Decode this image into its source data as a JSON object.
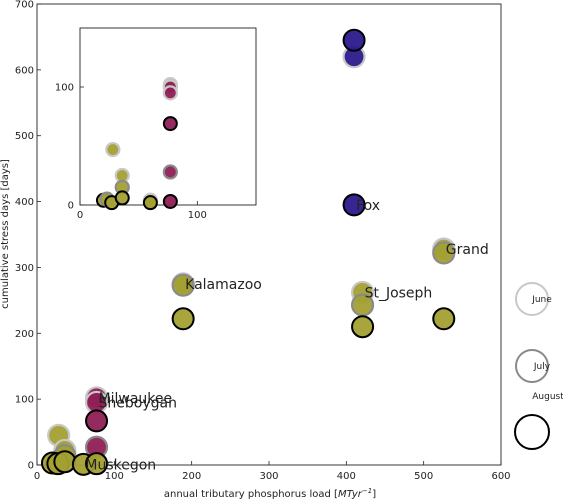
{
  "chart_data": [
    {
      "type": "scatter",
      "xlabel": "annual tributary phosphorus load [$MTyr^{-1}$]",
      "xlabel_parts": [
        "annual tributary phosphorus load [",
        "MTyr",
        "−1",
        "]"
      ],
      "ylabel": "cumulative stress days [days]",
      "xlim": [
        0,
        600
      ],
      "ylim": [
        0,
        700
      ],
      "xticks": [
        0,
        100,
        200,
        300,
        400,
        500,
        600
      ],
      "yticks": [
        0,
        100,
        200,
        300,
        400,
        500,
        600,
        700
      ],
      "grid": false,
      "series": [
        {
          "name": "June",
          "color": "#a3a033",
          "edge": "#b0b0b0",
          "points": [
            {
              "x": 28,
              "y": 45
            },
            {
              "x": 36,
              "y": 22
            },
            {
              "x": 77,
              "y": 102
            },
            {
              "x": 189,
              "y": 275
            },
            {
              "x": 410,
              "y": 620
            },
            {
              "x": 421,
              "y": 262
            },
            {
              "x": 526,
              "y": 328
            }
          ]
        },
        {
          "name": "July",
          "color": "#8e1f55",
          "edge": "#a0a0a0",
          "points": [
            {
              "x": 77,
              "y": 95
            },
            {
              "x": 77,
              "y": 27
            },
            {
              "x": 36,
              "y": 14
            },
            {
              "x": 189,
              "y": 273
            },
            {
              "x": 421,
              "y": 243
            },
            {
              "x": 526,
              "y": 322
            }
          ]
        },
        {
          "name": "August",
          "color": "#2b1a8c",
          "edge": "#000000",
          "points": [
            {
              "x": 77,
              "y": 67
            },
            {
              "x": 20,
              "y": 3
            },
            {
              "x": 27,
              "y": 2
            },
            {
              "x": 36,
              "y": 5
            },
            {
              "x": 60,
              "y": 1
            },
            {
              "x": 77,
              "y": 2
            },
            {
              "x": 189,
              "y": 222
            },
            {
              "x": 410,
              "y": 645
            },
            {
              "x": 410,
              "y": 395
            },
            {
              "x": 421,
              "y": 210
            },
            {
              "x": 526,
              "y": 222
            }
          ]
        }
      ],
      "point_colors": {
        "olive": "#a3a033",
        "magenta": "#8e1f55",
        "navy": "#2b1a8c"
      },
      "drawn_points": [
        {
          "x": 28,
          "y": 45,
          "fill": "olive",
          "edge": "light"
        },
        {
          "x": 36,
          "y": 22,
          "fill": "olive",
          "edge": "light"
        },
        {
          "x": 77,
          "y": 102,
          "fill": "magenta",
          "edge": "light"
        },
        {
          "x": 77,
          "y": 95,
          "fill": "magenta",
          "edge": "light"
        },
        {
          "x": 77,
          "y": 67,
          "fill": "magenta",
          "edge": "dark"
        },
        {
          "x": 77,
          "y": 27,
          "fill": "magenta",
          "edge": "mid"
        },
        {
          "x": 36,
          "y": 14,
          "fill": "olive",
          "edge": "mid"
        },
        {
          "x": 20,
          "y": 3,
          "fill": "olive",
          "edge": "dark"
        },
        {
          "x": 27,
          "y": 2,
          "fill": "olive",
          "edge": "dark"
        },
        {
          "x": 36,
          "y": 5,
          "fill": "olive",
          "edge": "dark"
        },
        {
          "x": 60,
          "y": 1,
          "fill": "olive",
          "edge": "dark"
        },
        {
          "x": 77,
          "y": 2,
          "fill": "olive",
          "edge": "dark"
        },
        {
          "x": 189,
          "y": 275,
          "fill": "olive",
          "edge": "light"
        },
        {
          "x": 189,
          "y": 273,
          "fill": "olive",
          "edge": "mid"
        },
        {
          "x": 189,
          "y": 222,
          "fill": "olive",
          "edge": "dark"
        },
        {
          "x": 410,
          "y": 620,
          "fill": "navy",
          "edge": "light"
        },
        {
          "x": 410,
          "y": 645,
          "fill": "navy",
          "edge": "dark"
        },
        {
          "x": 410,
          "y": 395,
          "fill": "navy",
          "edge": "dark"
        },
        {
          "x": 421,
          "y": 262,
          "fill": "olive",
          "edge": "light"
        },
        {
          "x": 421,
          "y": 243,
          "fill": "olive",
          "edge": "mid"
        },
        {
          "x": 421,
          "y": 210,
          "fill": "olive",
          "edge": "dark"
        },
        {
          "x": 526,
          "y": 328,
          "fill": "olive",
          "edge": "light"
        },
        {
          "x": 526,
          "y": 322,
          "fill": "olive",
          "edge": "mid"
        },
        {
          "x": 526,
          "y": 222,
          "fill": "olive",
          "edge": "dark"
        }
      ],
      "edge_colors": {
        "light": "#c8c8c8",
        "mid": "#8a8a8a",
        "dark": "#000000"
      },
      "annotations": [
        {
          "text": "Fox",
          "x": 410,
          "y": 395
        },
        {
          "text": "Grand",
          "x": 526,
          "y": 328
        },
        {
          "text": "Kalamazoo",
          "x": 189,
          "y": 275
        },
        {
          "text": "St_Joseph",
          "x": 421,
          "y": 262
        },
        {
          "text": "Milwaukee",
          "x": 77,
          "y": 102
        },
        {
          "text": "Sheboygan",
          "x": 77,
          "y": 95
        },
        {
          "text": "Muskegon",
          "x": 60,
          "y": 1
        }
      ],
      "legend": {
        "placement": "right, outside plot",
        "entries": [
          {
            "label": "June",
            "edge": "light"
          },
          {
            "label": "July",
            "edge": "mid"
          },
          {
            "label": "August",
            "edge": "dark"
          }
        ]
      }
    },
    {
      "type": "scatter",
      "role": "inset",
      "xlim": [
        0,
        150
      ],
      "ylim": [
        0,
        150
      ],
      "xticks": [
        0,
        100
      ],
      "yticks": [
        0,
        100
      ],
      "grid": false,
      "drawn_points": [
        {
          "x": 77,
          "y": 102,
          "fill": "olive",
          "edge": "light"
        },
        {
          "x": 77,
          "y": 100,
          "fill": "magenta",
          "edge": "light"
        },
        {
          "x": 77,
          "y": 95,
          "fill": "magenta",
          "edge": "light"
        },
        {
          "x": 77,
          "y": 69,
          "fill": "magenta",
          "edge": "dark"
        },
        {
          "x": 28,
          "y": 47,
          "fill": "olive",
          "edge": "light"
        },
        {
          "x": 36,
          "y": 25,
          "fill": "olive",
          "edge": "light"
        },
        {
          "x": 77,
          "y": 28,
          "fill": "magenta",
          "edge": "mid"
        },
        {
          "x": 36,
          "y": 15,
          "fill": "olive",
          "edge": "mid"
        },
        {
          "x": 20,
          "y": 4,
          "fill": "olive",
          "edge": "dark"
        },
        {
          "x": 23,
          "y": 5,
          "fill": "olive",
          "edge": "mid"
        },
        {
          "x": 27,
          "y": 2,
          "fill": "olive",
          "edge": "dark"
        },
        {
          "x": 36,
          "y": 6,
          "fill": "olive",
          "edge": "dark"
        },
        {
          "x": 60,
          "y": 4,
          "fill": "olive",
          "edge": "light"
        },
        {
          "x": 60,
          "y": 2,
          "fill": "olive",
          "edge": "dark"
        },
        {
          "x": 77,
          "y": 3,
          "fill": "magenta",
          "edge": "dark"
        }
      ]
    }
  ]
}
